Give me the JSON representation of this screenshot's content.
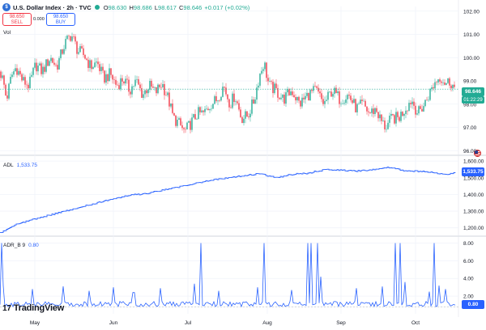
{
  "header": {
    "title": "U.S. Dollar Index · 2h · TVC",
    "open_label": "O",
    "open": "98.630",
    "high_label": "H",
    "high": "98.686",
    "low_label": "L",
    "low": "98.617",
    "close_label": "C",
    "close": "98.646",
    "change": "+0.017 (+0.02%)"
  },
  "trade": {
    "sell_price": "98.650",
    "sell_label": "SELL",
    "buy_price": "98.650",
    "buy_label": "BUY",
    "spread": "0.000"
  },
  "panes": {
    "price_volume_label": "Vol",
    "adl_label": "ADL",
    "adl_value": "1,533.75",
    "adr_label": "ADR_B",
    "adr_param": "9",
    "adr_value": "0.80"
  },
  "price_badge": {
    "value": "98.646",
    "countdown": "01:22:29"
  },
  "logo_text": "TradingView",
  "colors": {
    "up": "#22ab94",
    "down": "#f23645",
    "line": "#2962ff",
    "axis_text": "#131722"
  },
  "chart_data": [
    {
      "type": "candlestick",
      "title": "U.S. Dollar Index · 2h · TVC",
      "y_ticks": [
        "102.00",
        "101.00",
        "100.00",
        "99.00",
        "98.00",
        "97.00",
        "96.00"
      ],
      "ylim": [
        95.8,
        102.2
      ],
      "x_ticks": [
        "May",
        "Jun",
        "Jul",
        "Aug",
        "Sep",
        "Oct"
      ],
      "last_value": 98.646,
      "grid": true,
      "anchors": [
        {
          "x": 0,
          "y": 99.4
        },
        {
          "x": 4,
          "y": 99.0
        },
        {
          "x": 8,
          "y": 98.2
        },
        {
          "x": 14,
          "y": 99.2
        },
        {
          "x": 20,
          "y": 99.6
        },
        {
          "x": 28,
          "y": 99.0
        },
        {
          "x": 36,
          "y": 98.8
        },
        {
          "x": 44,
          "y": 99.7
        },
        {
          "x": 52,
          "y": 99.4
        },
        {
          "x": 62,
          "y": 100.0
        },
        {
          "x": 70,
          "y": 99.6
        },
        {
          "x": 80,
          "y": 100.6
        },
        {
          "x": 88,
          "y": 101.0
        },
        {
          "x": 96,
          "y": 100.3
        },
        {
          "x": 104,
          "y": 100.1
        },
        {
          "x": 112,
          "y": 99.6
        },
        {
          "x": 120,
          "y": 99.8
        },
        {
          "x": 128,
          "y": 99.1
        },
        {
          "x": 136,
          "y": 99.3
        },
        {
          "x": 144,
          "y": 98.8
        },
        {
          "x": 152,
          "y": 99.1
        },
        {
          "x": 160,
          "y": 98.6
        },
        {
          "x": 168,
          "y": 99.0
        },
        {
          "x": 176,
          "y": 98.4
        },
        {
          "x": 184,
          "y": 98.8
        },
        {
          "x": 192,
          "y": 98.5
        },
        {
          "x": 200,
          "y": 98.9
        },
        {
          "x": 208,
          "y": 98.2
        },
        {
          "x": 214,
          "y": 97.4
        },
        {
          "x": 220,
          "y": 97.2
        },
        {
          "x": 228,
          "y": 96.8
        },
        {
          "x": 236,
          "y": 97.2
        },
        {
          "x": 244,
          "y": 97.6
        },
        {
          "x": 252,
          "y": 97.6
        },
        {
          "x": 260,
          "y": 98.0
        },
        {
          "x": 268,
          "y": 98.2
        },
        {
          "x": 276,
          "y": 98.8
        },
        {
          "x": 284,
          "y": 98.0
        },
        {
          "x": 290,
          "y": 98.4
        },
        {
          "x": 298,
          "y": 97.4
        },
        {
          "x": 306,
          "y": 97.5
        },
        {
          "x": 314,
          "y": 98.2
        },
        {
          "x": 320,
          "y": 99.2
        },
        {
          "x": 326,
          "y": 99.8
        },
        {
          "x": 332,
          "y": 98.8
        },
        {
          "x": 340,
          "y": 98.6
        },
        {
          "x": 350,
          "y": 98.2
        },
        {
          "x": 360,
          "y": 98.6
        },
        {
          "x": 370,
          "y": 98.0
        },
        {
          "x": 380,
          "y": 98.4
        },
        {
          "x": 390,
          "y": 98.6
        },
        {
          "x": 400,
          "y": 98.0
        },
        {
          "x": 410,
          "y": 98.6
        },
        {
          "x": 420,
          "y": 98.2
        },
        {
          "x": 430,
          "y": 98.4
        },
        {
          "x": 440,
          "y": 97.8
        },
        {
          "x": 448,
          "y": 98.0
        },
        {
          "x": 456,
          "y": 97.6
        },
        {
          "x": 464,
          "y": 97.8
        },
        {
          "x": 470,
          "y": 97.3
        },
        {
          "x": 476,
          "y": 97.0
        },
        {
          "x": 484,
          "y": 97.4
        },
        {
          "x": 492,
          "y": 97.4
        },
        {
          "x": 500,
          "y": 97.8
        },
        {
          "x": 508,
          "y": 98.2
        },
        {
          "x": 516,
          "y": 97.6
        },
        {
          "x": 524,
          "y": 98.0
        },
        {
          "x": 532,
          "y": 98.6
        },
        {
          "x": 538,
          "y": 99.0
        },
        {
          "x": 544,
          "y": 99.2
        },
        {
          "x": 550,
          "y": 98.9
        },
        {
          "x": 556,
          "y": 99.0
        },
        {
          "x": 562,
          "y": 98.6
        }
      ]
    },
    {
      "type": "line",
      "title": "ADL",
      "y_ticks": [
        "1,600.00",
        "1,500.00",
        "1,400.00",
        "1,300.00",
        "1,200.00"
      ],
      "ylim": [
        1150,
        1620
      ],
      "last_value": 1533.75,
      "anchors": [
        {
          "x": 0,
          "y": 1170
        },
        {
          "x": 20,
          "y": 1220
        },
        {
          "x": 40,
          "y": 1250
        },
        {
          "x": 60,
          "y": 1275
        },
        {
          "x": 80,
          "y": 1300
        },
        {
          "x": 100,
          "y": 1325
        },
        {
          "x": 120,
          "y": 1350
        },
        {
          "x": 140,
          "y": 1375
        },
        {
          "x": 160,
          "y": 1395
        },
        {
          "x": 180,
          "y": 1405
        },
        {
          "x": 200,
          "y": 1425
        },
        {
          "x": 220,
          "y": 1445
        },
        {
          "x": 240,
          "y": 1465
        },
        {
          "x": 260,
          "y": 1485
        },
        {
          "x": 280,
          "y": 1500
        },
        {
          "x": 300,
          "y": 1512
        },
        {
          "x": 320,
          "y": 1525
        },
        {
          "x": 340,
          "y": 1500
        },
        {
          "x": 360,
          "y": 1520
        },
        {
          "x": 380,
          "y": 1528
        },
        {
          "x": 400,
          "y": 1548
        },
        {
          "x": 420,
          "y": 1545
        },
        {
          "x": 440,
          "y": 1540
        },
        {
          "x": 460,
          "y": 1548
        },
        {
          "x": 480,
          "y": 1562
        },
        {
          "x": 500,
          "y": 1542
        },
        {
          "x": 520,
          "y": 1538
        },
        {
          "x": 540,
          "y": 1528
        },
        {
          "x": 550,
          "y": 1518
        },
        {
          "x": 556,
          "y": 1525
        },
        {
          "x": 562,
          "y": 1534
        }
      ]
    },
    {
      "type": "line",
      "title": "ADR_B 9",
      "y_ticks": [
        "8.00",
        "6.00",
        "4.00",
        "2.00",
        "0.80"
      ],
      "ylim": [
        0,
        8.5
      ],
      "last_value": 0.8,
      "spikes": [
        {
          "x": 2,
          "y": 8.0
        },
        {
          "x": 4,
          "y": 3.2
        },
        {
          "x": 40,
          "y": 2.8
        },
        {
          "x": 78,
          "y": 3.1
        },
        {
          "x": 110,
          "y": 2.6
        },
        {
          "x": 140,
          "y": 3.0
        },
        {
          "x": 165,
          "y": 2.4
        },
        {
          "x": 198,
          "y": 2.9
        },
        {
          "x": 240,
          "y": 3.4
        },
        {
          "x": 248,
          "y": 8.0
        },
        {
          "x": 270,
          "y": 2.6
        },
        {
          "x": 318,
          "y": 3.0
        },
        {
          "x": 326,
          "y": 8.0
        },
        {
          "x": 360,
          "y": 2.7
        },
        {
          "x": 380,
          "y": 8.0
        },
        {
          "x": 384,
          "y": 8.0
        },
        {
          "x": 392,
          "y": 8.0
        },
        {
          "x": 396,
          "y": 4.2
        },
        {
          "x": 440,
          "y": 2.9
        },
        {
          "x": 472,
          "y": 3.1
        },
        {
          "x": 488,
          "y": 8.0
        },
        {
          "x": 494,
          "y": 8.0
        },
        {
          "x": 500,
          "y": 3.6
        },
        {
          "x": 530,
          "y": 2.5
        },
        {
          "x": 536,
          "y": 8.0
        },
        {
          "x": 542,
          "y": 3.2
        },
        {
          "x": 550,
          "y": 2.8
        }
      ]
    }
  ]
}
